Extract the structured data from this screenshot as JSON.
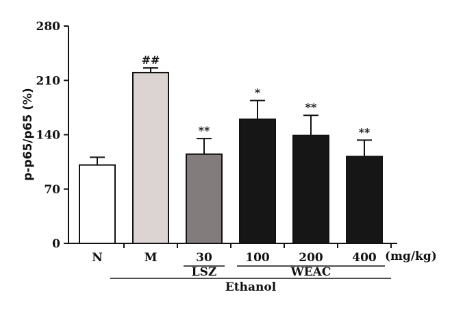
{
  "chart_data": {
    "type": "bar",
    "categories": [
      "N",
      "M",
      "30",
      "100",
      "200",
      "400"
    ],
    "values": [
      101,
      220,
      115,
      160,
      139,
      112
    ],
    "errors": [
      10,
      6,
      20,
      24,
      26,
      21
    ],
    "significance": [
      "",
      "##",
      "**",
      "*",
      "**",
      "**"
    ],
    "bar_colors": [
      "#ffffff",
      "#dcd4d2",
      "#837c7c",
      "#161616",
      "#161616",
      "#161616"
    ],
    "ylabel": "p-p65/p65 (%)",
    "ylim": [
      0,
      280
    ],
    "yticks": [
      "0",
      "70",
      "140",
      "210",
      "280"
    ],
    "unit_label": "(mg/kg)",
    "groups": [
      {
        "label": "LSZ",
        "from": 2,
        "to": 2
      },
      {
        "label": "WEAC",
        "from": 3,
        "to": 5
      },
      {
        "label": "Ethanol",
        "from": 1,
        "to": 5
      }
    ]
  }
}
